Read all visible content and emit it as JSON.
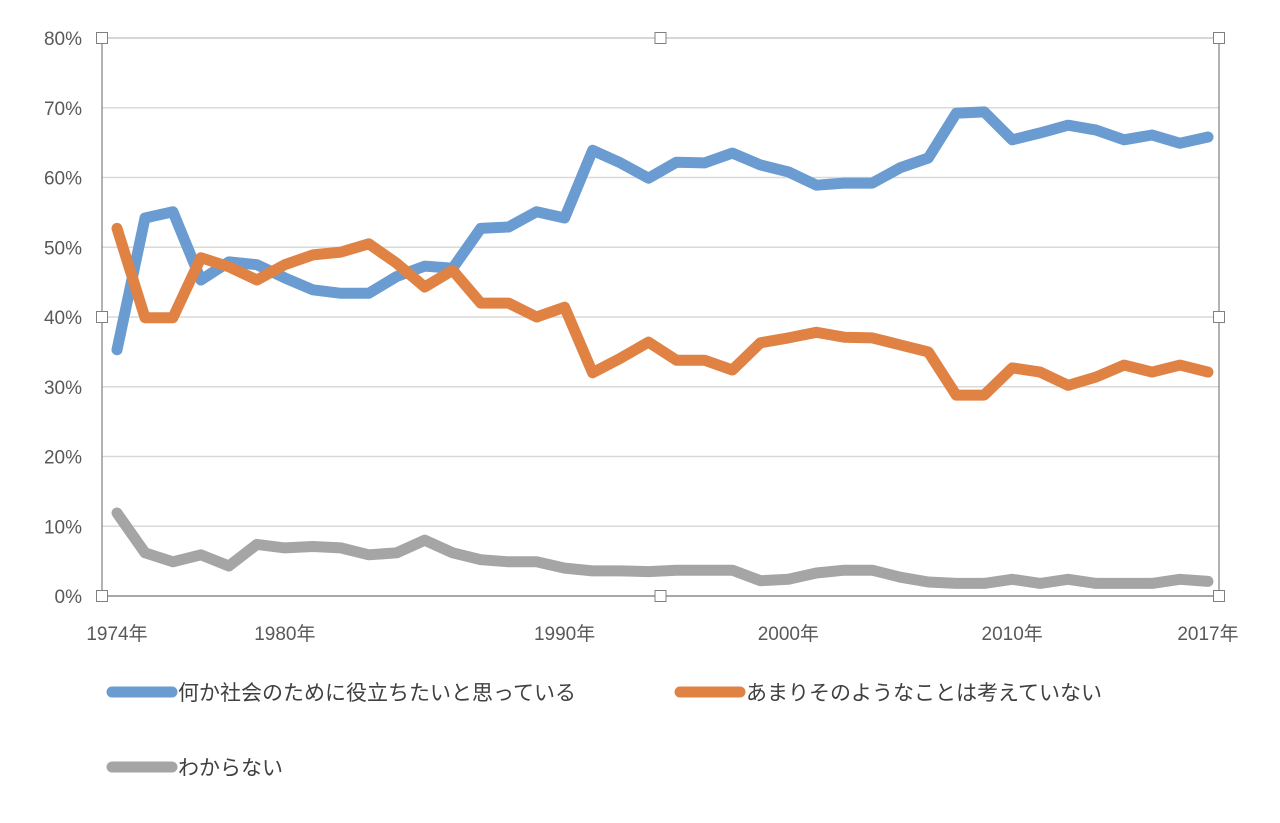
{
  "chart_data": {
    "type": "line",
    "title": "",
    "xlabel": "",
    "ylabel": "",
    "ylim": [
      0,
      80
    ],
    "y_ticks": [
      "0%",
      "10%",
      "20%",
      "30%",
      "40%",
      "50%",
      "60%",
      "70%",
      "80%"
    ],
    "grid": "horizontal",
    "legend_placement": "bottom",
    "x_tick_labels": [
      {
        "index": 0,
        "label": "1974年"
      },
      {
        "index": 6,
        "label": "1980年"
      },
      {
        "index": 16,
        "label": "1990年"
      },
      {
        "index": 24,
        "label": "2000年"
      },
      {
        "index": 32,
        "label": "2010年"
      },
      {
        "index": 39,
        "label": "2017年"
      }
    ],
    "point_count": 40,
    "series": [
      {
        "name": "何か社会のために役立ちたいと思っている",
        "color": "#6a9bd1",
        "values": [
          35.3,
          54.2,
          55.1,
          45.3,
          47.9,
          47.5,
          45.6,
          43.9,
          43.4,
          43.4,
          45.8,
          47.3,
          47.0,
          52.7,
          52.9,
          55.1,
          54.2,
          63.9,
          62.1,
          59.9,
          62.2,
          62.1,
          63.5,
          61.8,
          60.8,
          58.9,
          59.2,
          59.2,
          61.4,
          62.8,
          69.2,
          69.4,
          65.4,
          66.4,
          67.5,
          66.8,
          65.4,
          66.1,
          64.9,
          65.8
        ]
      },
      {
        "name": "あまりそのようなことは考えていない",
        "color": "#e08244",
        "values": [
          52.7,
          39.9,
          39.9,
          48.5,
          47.2,
          45.3,
          47.5,
          48.9,
          49.3,
          50.5,
          47.7,
          44.3,
          46.7,
          42.0,
          42.0,
          40.0,
          41.4,
          32.0,
          34.1,
          36.4,
          33.8,
          33.8,
          32.4,
          36.3,
          37.0,
          37.8,
          37.1,
          37.0,
          36.0,
          35.0,
          28.8,
          28.8,
          32.7,
          32.1,
          30.2,
          31.4,
          33.1,
          32.1,
          33.1,
          32.1
        ]
      },
      {
        "name": "わからない",
        "color": "#a5a5a5",
        "values": [
          11.9,
          6.2,
          4.9,
          5.9,
          4.3,
          7.4,
          6.9,
          7.1,
          6.9,
          5.9,
          6.2,
          8.0,
          6.2,
          5.2,
          4.9,
          4.9,
          4.0,
          3.6,
          3.6,
          3.5,
          3.7,
          3.7,
          3.7,
          2.2,
          2.4,
          3.3,
          3.7,
          3.7,
          2.7,
          2.0,
          1.8,
          1.8,
          2.4,
          1.8,
          2.4,
          1.8,
          1.8,
          1.8,
          2.4,
          2.1
        ]
      }
    ]
  }
}
